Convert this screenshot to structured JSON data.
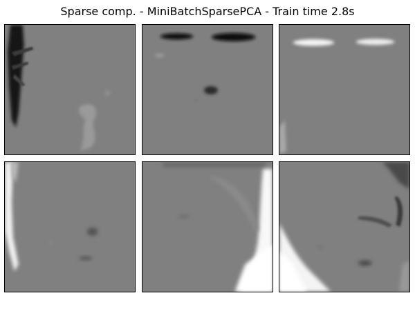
{
  "figure": {
    "title": "Sparse comp. - MiniBatchSparsePCA - Train time 2.8s",
    "background_gray": "#808080",
    "components": [
      {
        "index": 1,
        "dominant_feature": "dark-vertical-streak-left"
      },
      {
        "index": 2,
        "dominant_feature": "dark-horizontal-eyebrows"
      },
      {
        "index": 3,
        "dominant_feature": "light-horizontal-eyebrows"
      },
      {
        "index": 4,
        "dominant_feature": "light-vertical-edge-left"
      },
      {
        "index": 5,
        "dominant_feature": "light-blob-bottom-right"
      },
      {
        "index": 6,
        "dominant_feature": "light-blob-bottom-left"
      }
    ]
  }
}
